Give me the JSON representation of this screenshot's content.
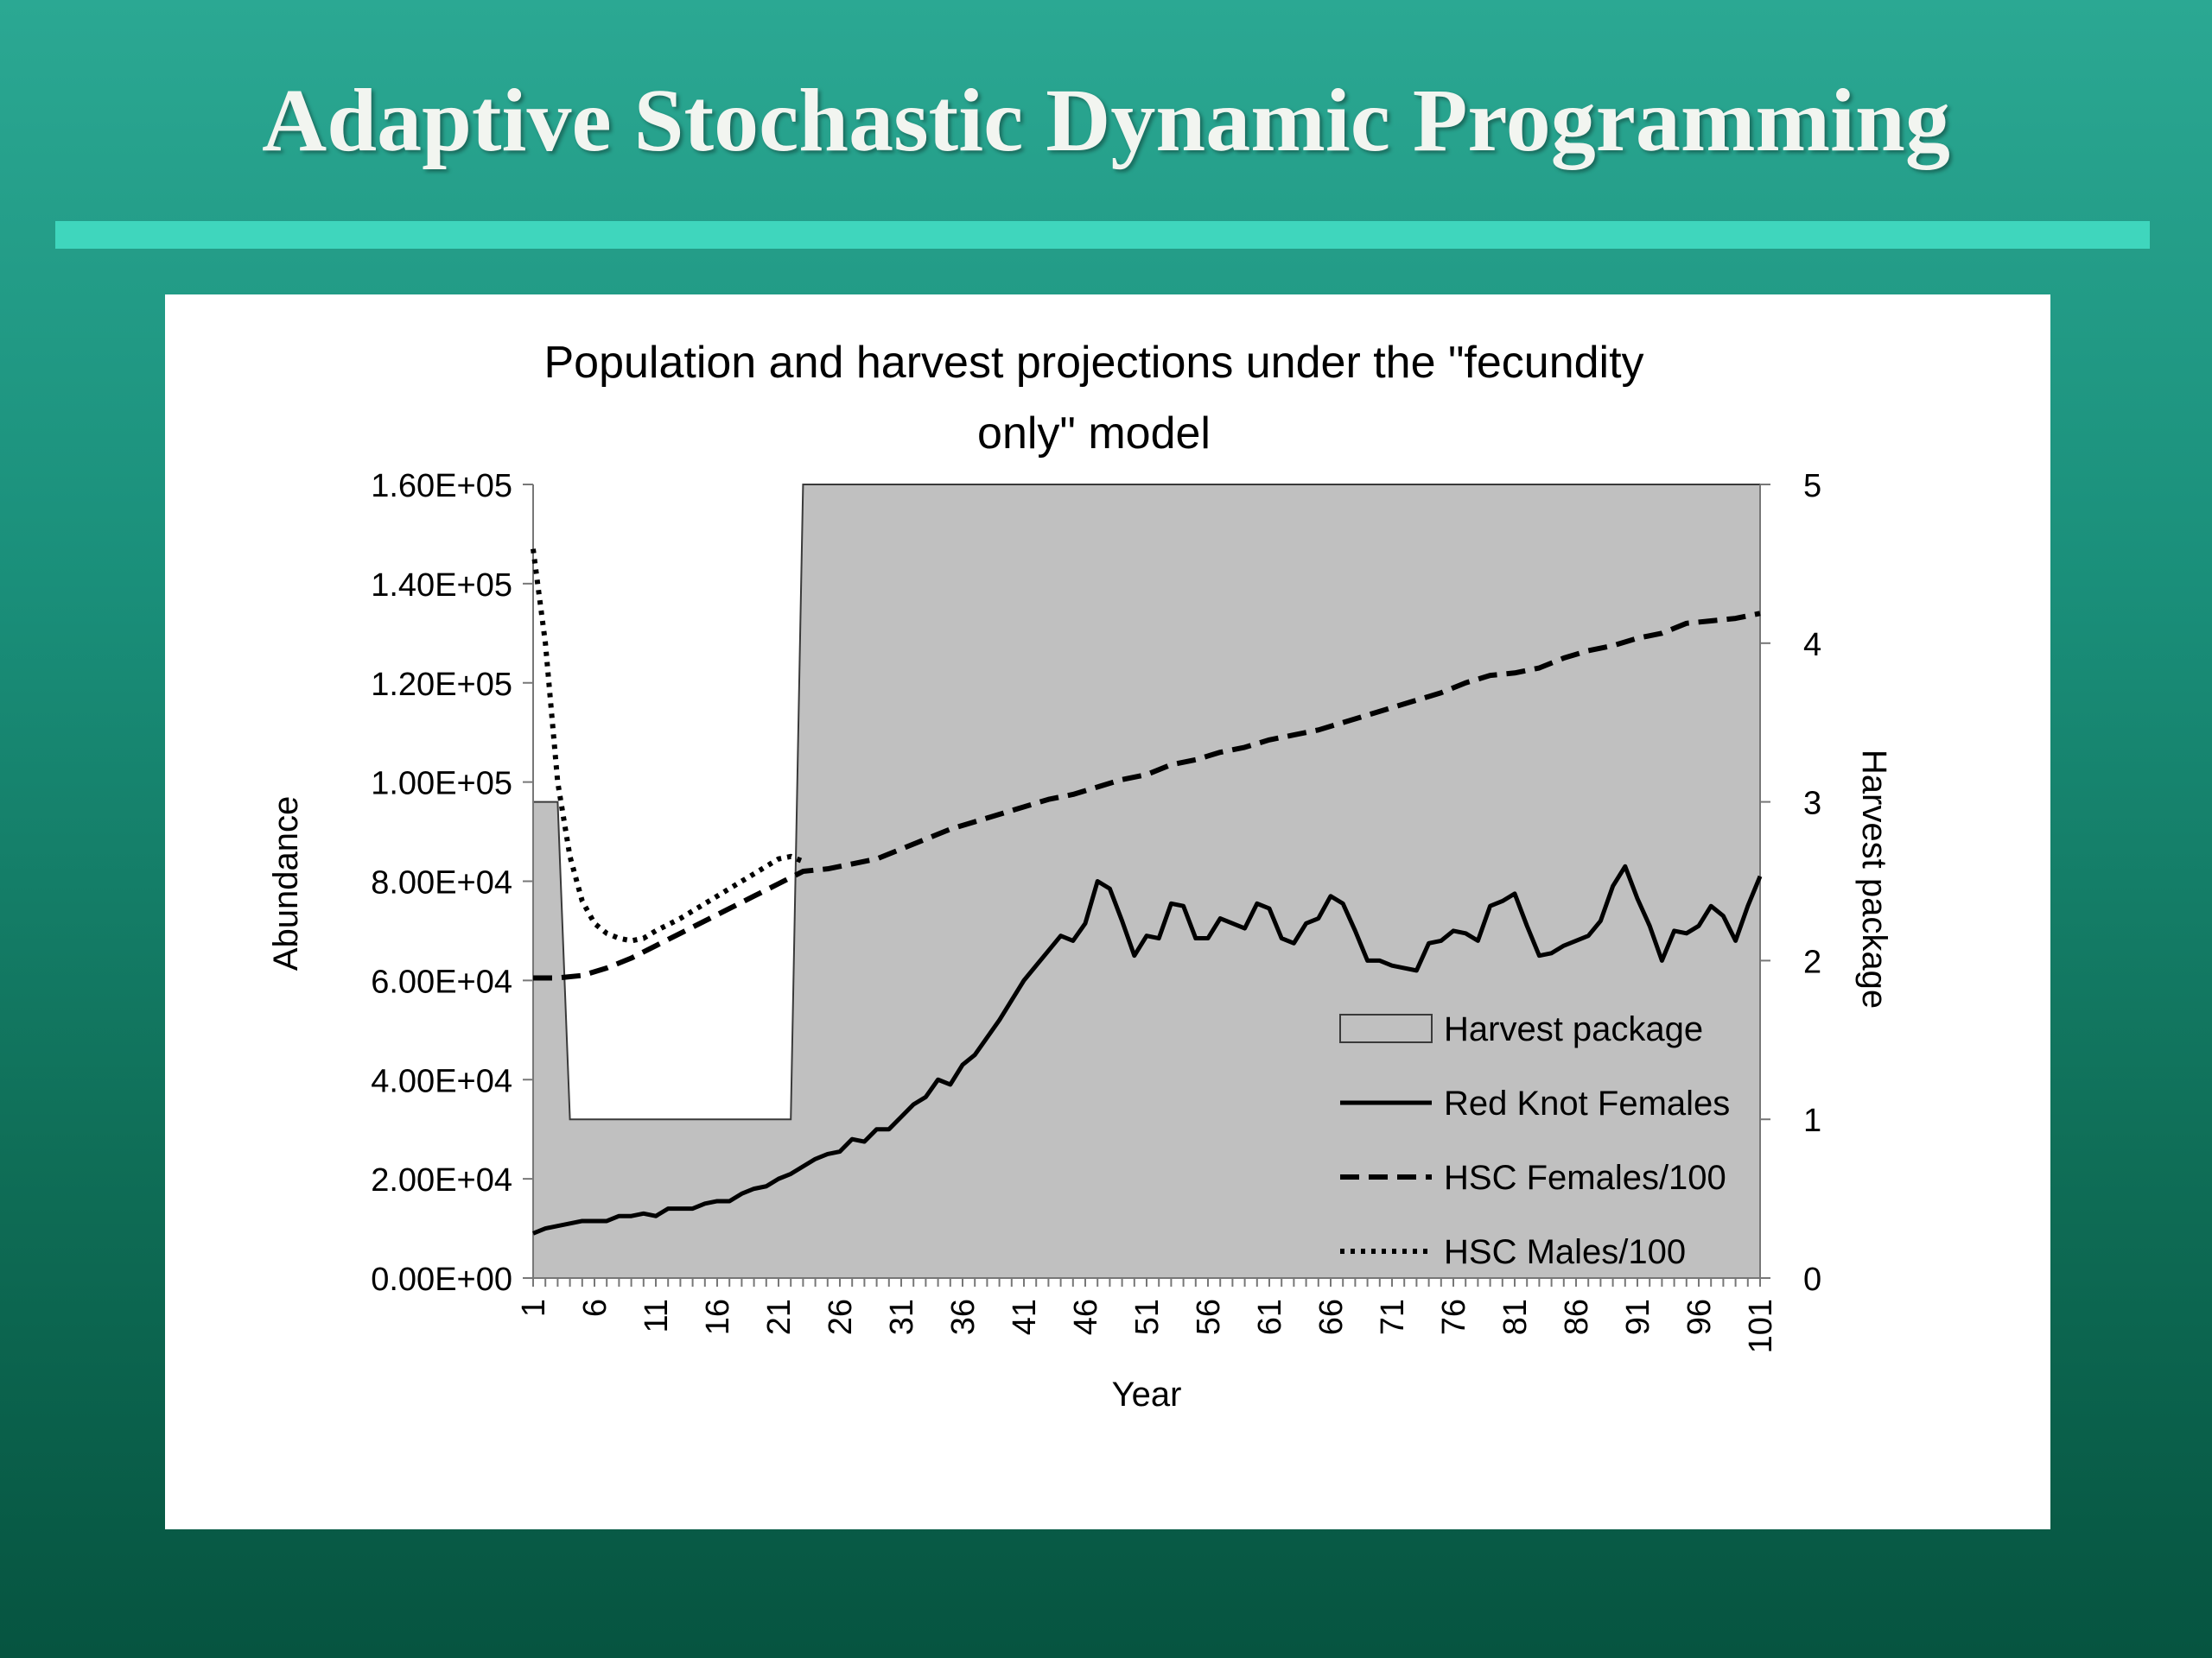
{
  "slide": {
    "title": "Adaptive Stochastic Dynamic Programming"
  },
  "colors": {
    "background": "#1a8f7a",
    "rule": "#3fd6bd",
    "harvest_fill": "#c0c0c0",
    "series_line": "#000000"
  },
  "chart_data": {
    "type": "line",
    "title": "Population and harvest projections under the \"fecundity only\" model",
    "title_lines": [
      "Population and harvest projections under the \"fecundity",
      "only\" model"
    ],
    "xlabel": "Year",
    "ylabel": "Abundance",
    "y2label": "Harvest package",
    "xlim": [
      1,
      101
    ],
    "ylim": [
      0,
      160000
    ],
    "y2lim": [
      0,
      5
    ],
    "x_ticks": [
      1,
      6,
      11,
      16,
      21,
      26,
      31,
      36,
      41,
      46,
      51,
      56,
      61,
      66,
      71,
      76,
      81,
      86,
      91,
      96,
      101
    ],
    "x_tick_labels": [
      "1",
      "6",
      "11",
      "16",
      "21",
      "26",
      "31",
      "36",
      "41",
      "46",
      "51",
      "56",
      "61",
      "66",
      "71",
      "76",
      "81",
      "86",
      "91",
      "96",
      "101"
    ],
    "y_ticks": [
      0,
      20000,
      40000,
      60000,
      80000,
      100000,
      120000,
      140000,
      160000
    ],
    "y_tick_labels": [
      "0.00E+00",
      "2.00E+04",
      "4.00E+04",
      "6.00E+04",
      "8.00E+04",
      "1.00E+05",
      "1.20E+05",
      "1.40E+05",
      "1.60E+05"
    ],
    "y2_ticks": [
      0,
      1,
      2,
      3,
      4,
      5
    ],
    "y2_tick_labels": [
      "0",
      "1",
      "2",
      "3",
      "4",
      "5"
    ],
    "grid": false,
    "legend_position": "bottom-right",
    "series": [
      {
        "name": "Harvest package",
        "kind": "area",
        "axis": "right",
        "x": [
          1,
          3,
          4,
          22,
          23,
          101
        ],
        "values": [
          3,
          3,
          1,
          1,
          5,
          5
        ]
      },
      {
        "name": "Red Knot Females",
        "kind": "line",
        "style": "solid",
        "axis": "left",
        "x": [
          1,
          2,
          3,
          4,
          5,
          6,
          7,
          8,
          9,
          10,
          11,
          12,
          13,
          14,
          15,
          16,
          17,
          18,
          19,
          20,
          21,
          22,
          23,
          24,
          25,
          26,
          27,
          28,
          29,
          30,
          31,
          32,
          33,
          34,
          35,
          36,
          37,
          38,
          39,
          40,
          41,
          42,
          43,
          44,
          45,
          46,
          47,
          48,
          49,
          50,
          51,
          52,
          53,
          54,
          55,
          56,
          57,
          58,
          59,
          60,
          61,
          62,
          63,
          64,
          65,
          66,
          67,
          68,
          69,
          70,
          71,
          72,
          73,
          74,
          75,
          76,
          77,
          78,
          79,
          80,
          81,
          82,
          83,
          84,
          85,
          86,
          87,
          88,
          89,
          90,
          91,
          92,
          93,
          94,
          95,
          96,
          97,
          98,
          99,
          100,
          101
        ],
        "values": [
          9000,
          10000,
          10500,
          11000,
          11500,
          11500,
          11500,
          12500,
          12500,
          13000,
          12500,
          14000,
          14000,
          14000,
          15000,
          15500,
          15500,
          17000,
          18000,
          18500,
          20000,
          21000,
          22500,
          24000,
          25000,
          25500,
          28000,
          27500,
          30000,
          30000,
          32500,
          35000,
          36500,
          40000,
          39000,
          43000,
          45000,
          48500,
          52000,
          56000,
          60000,
          63000,
          66000,
          69000,
          68000,
          71500,
          80000,
          78500,
          72000,
          65000,
          69000,
          68500,
          75500,
          75000,
          68500,
          68500,
          72500,
          71500,
          70500,
          75500,
          74500,
          68500,
          67500,
          71500,
          72500,
          77000,
          75500,
          70000,
          64000,
          64000,
          63000,
          62500,
          62000,
          67500,
          68000,
          70000,
          69500,
          68000,
          75000,
          76000,
          77500,
          71000,
          65000,
          65500,
          67000,
          68000,
          69000,
          72000,
          79000,
          83000,
          76500,
          71000,
          64000,
          70000,
          69500,
          71000,
          75000,
          73000,
          68000,
          75000,
          81000
        ]
      },
      {
        "name": "HSC Females/100",
        "kind": "line",
        "style": "dashed",
        "axis": "left",
        "x": [
          1,
          3,
          5,
          7,
          9,
          11,
          13,
          15,
          17,
          19,
          21,
          23,
          25,
          27,
          29,
          31,
          33,
          35,
          37,
          39,
          41,
          43,
          45,
          47,
          49,
          51,
          53,
          55,
          57,
          59,
          61,
          63,
          65,
          67,
          69,
          71,
          73,
          75,
          77,
          79,
          81,
          83,
          85,
          87,
          89,
          91,
          93,
          95,
          97,
          99,
          101
        ],
        "values": [
          60500,
          60500,
          61000,
          62500,
          64500,
          67000,
          69500,
          72000,
          74500,
          77000,
          79500,
          82000,
          82500,
          83500,
          84500,
          86500,
          88500,
          90500,
          92000,
          93500,
          95000,
          96500,
          97500,
          99000,
          100500,
          101500,
          103500,
          104500,
          106000,
          107000,
          108500,
          109500,
          110500,
          112000,
          113500,
          115000,
          116500,
          118000,
          120000,
          121500,
          122000,
          123000,
          125000,
          126500,
          127500,
          129000,
          130000,
          132000,
          132500,
          133000,
          134000
        ]
      },
      {
        "name": "HSC Males/100",
        "kind": "line",
        "style": "dotted",
        "axis": "left",
        "x": [
          1,
          2,
          3,
          4,
          5,
          6,
          7,
          8,
          9,
          10,
          11,
          13,
          15,
          17,
          19,
          21,
          22,
          23
        ],
        "values": [
          147000,
          128000,
          100000,
          85000,
          76000,
          71500,
          69500,
          68500,
          68000,
          68500,
          70000,
          72500,
          75500,
          78500,
          81500,
          84500,
          85000,
          84000
        ]
      }
    ]
  }
}
